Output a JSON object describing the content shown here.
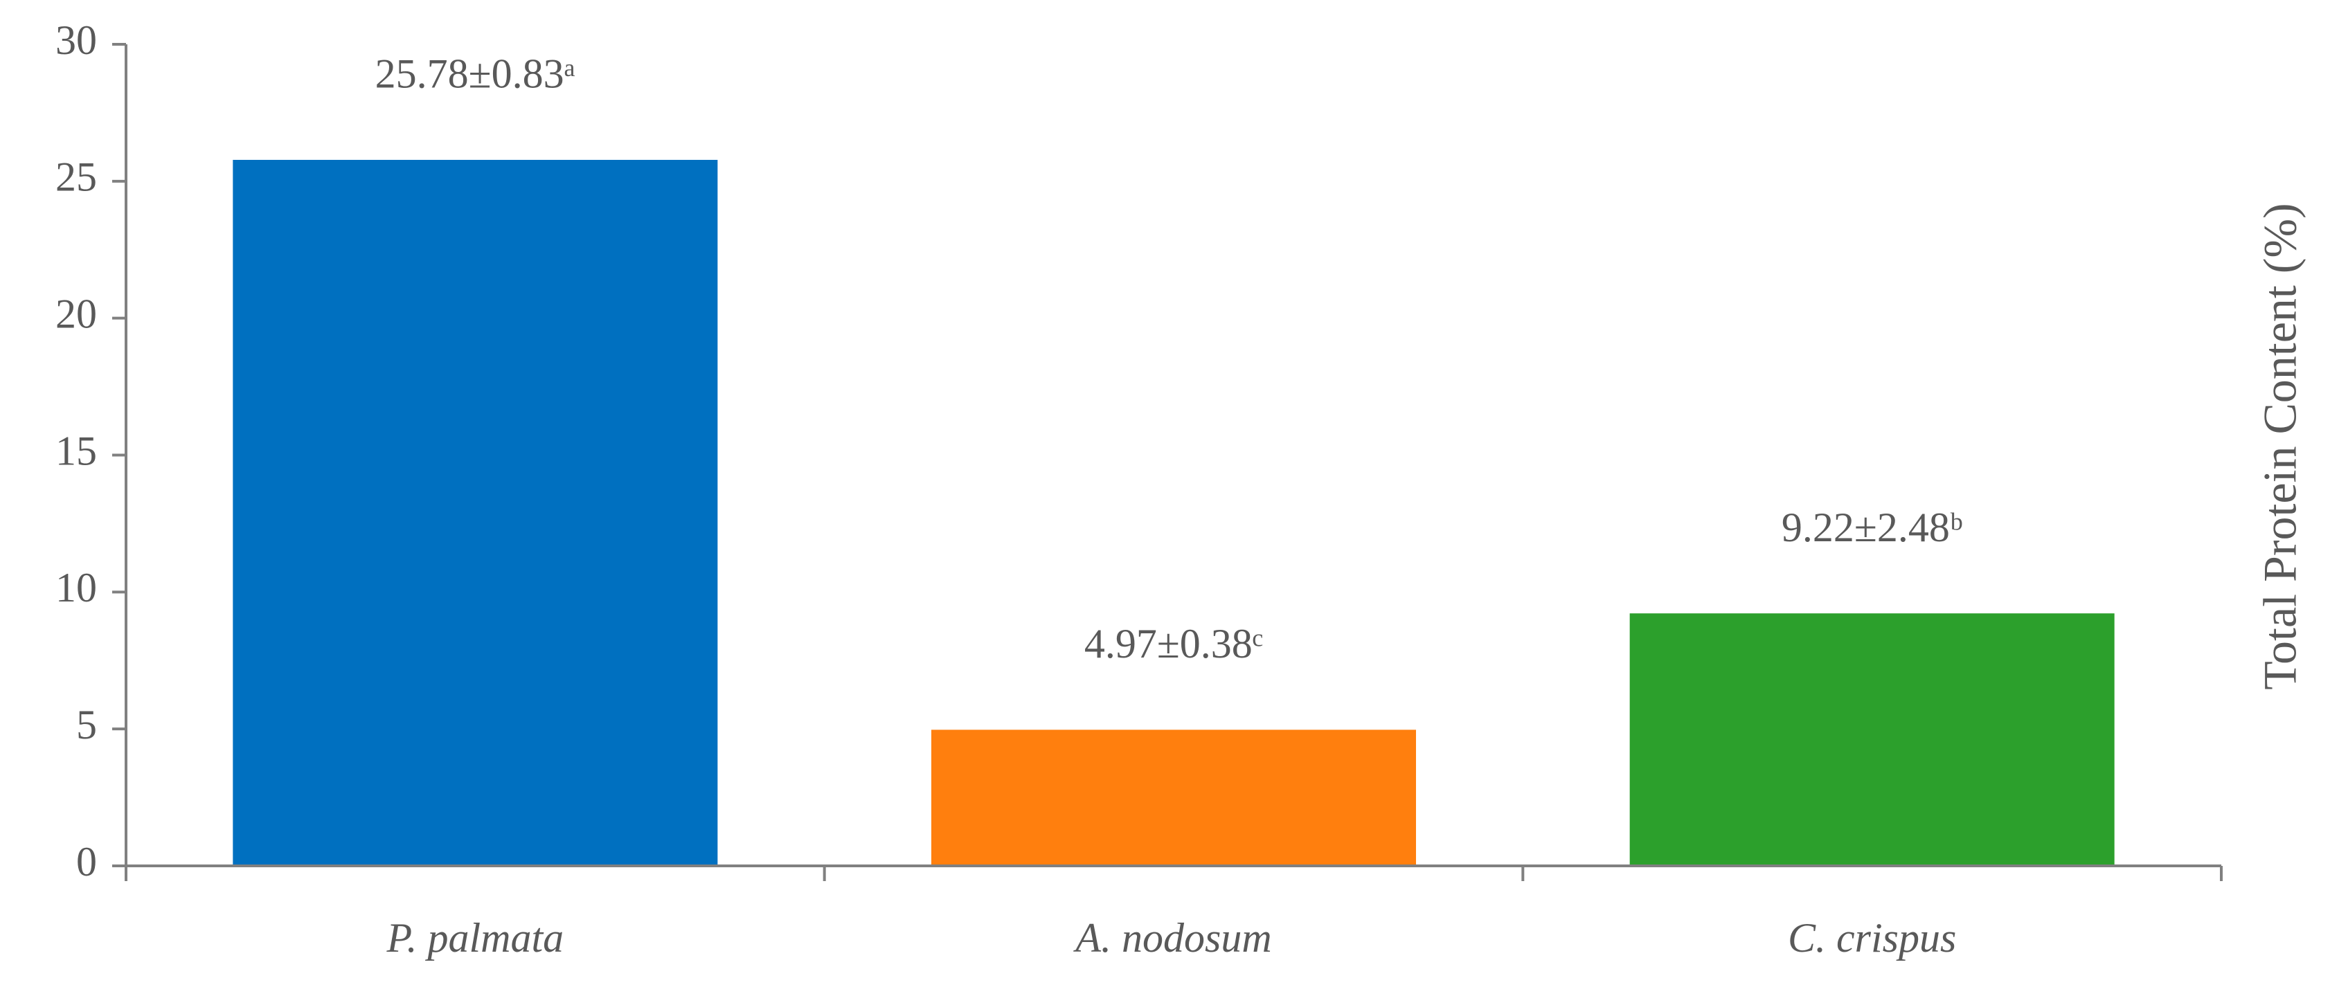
{
  "chart_data": {
    "type": "bar",
    "y_label": "Total Protein Content (%)",
    "categories": [
      "P. palmata",
      "A. nodosum",
      "C. crispus"
    ],
    "values": [
      25.78,
      4.97,
      9.22
    ],
    "value_labels": [
      "25.78±0.83ᵃ",
      "4.97±0.38ᶜ",
      "9.22±2.48ᵇ"
    ],
    "colors": [
      "#0070c0",
      "#ff7f0e",
      "#2ca02c"
    ],
    "ylim": [
      0,
      30
    ],
    "yticks": [
      0,
      5,
      10,
      15,
      20,
      25,
      30
    ],
    "grid": false
  }
}
